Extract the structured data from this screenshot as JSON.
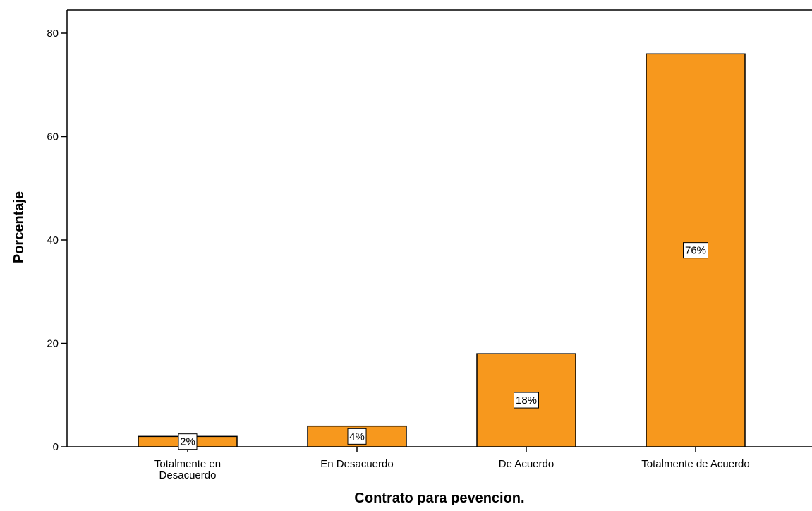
{
  "chart_data": {
    "type": "bar",
    "title": "",
    "xlabel": "Contrato para pevencion.",
    "ylabel": "Porcentaje",
    "categories": [
      [
        "Totalmente en",
        "Desacuerdo"
      ],
      [
        "En Desacuerdo"
      ],
      [
        "De Acuerdo"
      ],
      [
        "Totalmente de Acuerdo"
      ]
    ],
    "values": [
      2,
      4,
      18,
      76
    ],
    "data_labels": [
      "2%",
      "4%",
      "18%",
      "76%"
    ],
    "ylim": [
      0,
      80
    ],
    "yticks": [
      0,
      20,
      40,
      60,
      80
    ],
    "grid": false,
    "legend": "none",
    "bar_color": "#f7981d",
    "bar_stroke": "#000000"
  }
}
